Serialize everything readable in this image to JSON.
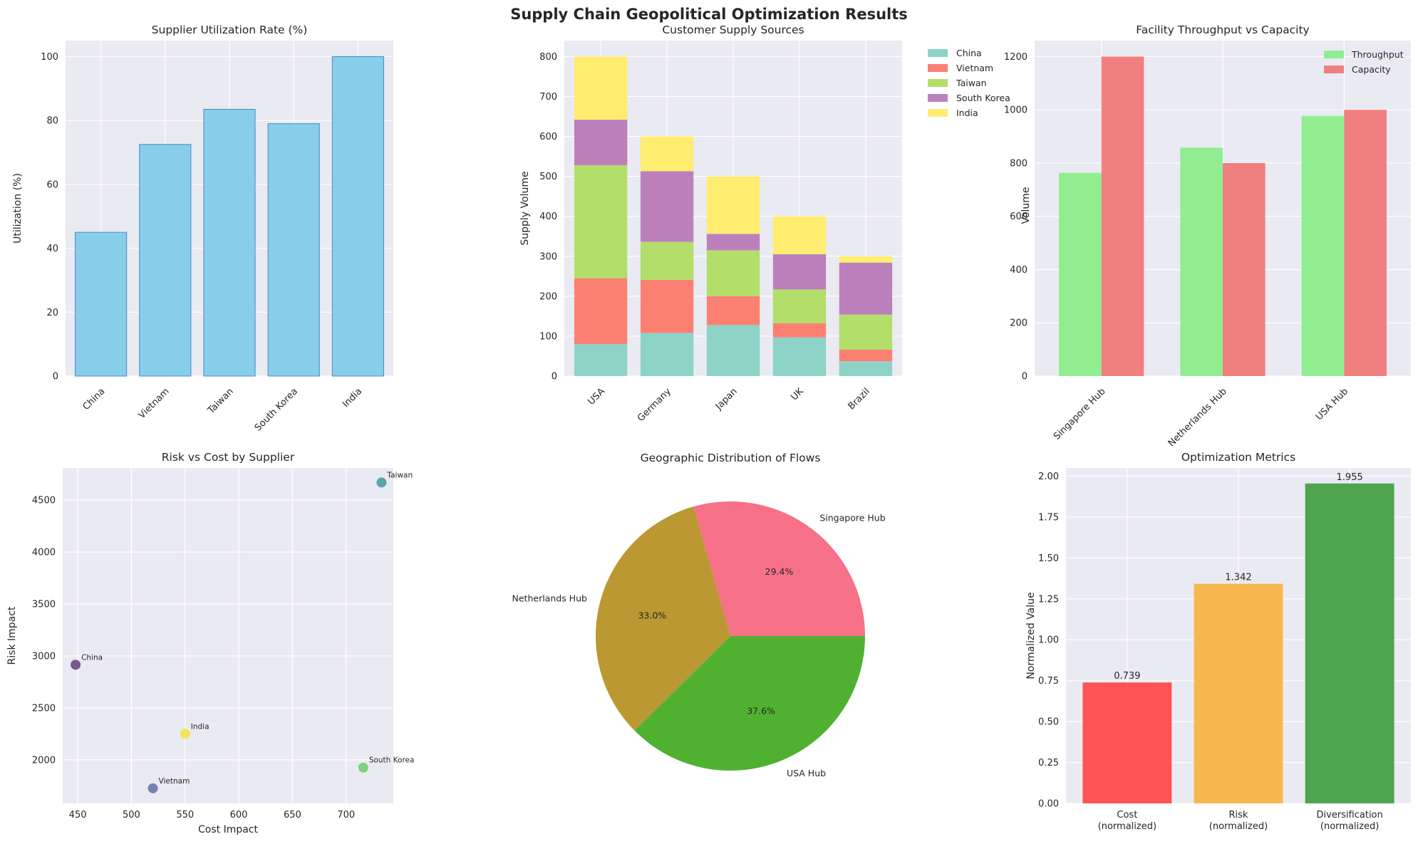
{
  "suptitle": "Supply Chain Geopolitical Optimization Results",
  "chart_data": [
    {
      "id": "utilization",
      "type": "bar",
      "title": "Supplier Utilization Rate (%)",
      "xlabel": "",
      "ylabel": "Utilization (%)",
      "categories": [
        "China",
        "Vietnam",
        "Taiwan",
        "South Korea",
        "India"
      ],
      "values": [
        45,
        72.5,
        83.5,
        79,
        100
      ],
      "ylim": [
        0,
        105
      ],
      "yticks": [
        0,
        20,
        40,
        60,
        80,
        100
      ],
      "color": "#87ceeb",
      "grid": true
    },
    {
      "id": "supply",
      "type": "bar",
      "stacked": true,
      "title": "Customer Supply Sources",
      "xlabel": "",
      "ylabel": "Supply Volume",
      "categories": [
        "USA",
        "Germany",
        "Japan",
        "UK",
        "Brazil"
      ],
      "series": [
        {
          "name": "China",
          "color": "#8dd3c7",
          "values": [
            80,
            108,
            128,
            97,
            37
          ]
        },
        {
          "name": "Vietnam",
          "color": "#fb8072",
          "values": [
            165,
            133,
            72,
            35,
            29
          ]
        },
        {
          "name": "Taiwan",
          "color": "#b3de69",
          "values": [
            283,
            95,
            115,
            85,
            88
          ]
        },
        {
          "name": "South Korea",
          "color": "#bc80bd",
          "values": [
            114,
            177,
            41,
            88,
            130
          ]
        },
        {
          "name": "India",
          "color": "#ffed6f",
          "values": [
            158,
            87,
            144,
            95,
            16
          ]
        }
      ],
      "ylim": [
        0,
        840
      ],
      "yticks": [
        0,
        100,
        200,
        300,
        400,
        500,
        600,
        700,
        800
      ],
      "legend": "outside-right",
      "grid": true
    },
    {
      "id": "facility",
      "type": "bar",
      "grouped": true,
      "title": "Facility Throughput vs Capacity",
      "xlabel": "",
      "ylabel": "Volume",
      "categories": [
        "Singapore Hub",
        "Netherlands Hub",
        "USA Hub"
      ],
      "series": [
        {
          "name": "Throughput",
          "color": "#90ee90",
          "values": [
            763,
            858,
            977
          ]
        },
        {
          "name": "Capacity",
          "color": "#f08080",
          "values": [
            1200,
            800,
            1000
          ]
        }
      ],
      "ylim": [
        0,
        1260
      ],
      "yticks": [
        0,
        200,
        400,
        600,
        800,
        1000,
        1200
      ],
      "legend": "top-right",
      "grid": true
    },
    {
      "id": "risk_cost",
      "type": "scatter",
      "title": "Risk vs Cost by Supplier",
      "xlabel": "Cost Impact",
      "ylabel": "Risk Impact",
      "points": [
        {
          "label": "China",
          "x": 448,
          "y": 2915,
          "color": "#6a3d7e"
        },
        {
          "label": "Vietnam",
          "x": 520,
          "y": 1725,
          "color": "#5e70a8"
        },
        {
          "label": "Taiwan",
          "x": 733,
          "y": 4670,
          "color": "#3a9a9f"
        },
        {
          "label": "South Korea",
          "x": 716,
          "y": 1925,
          "color": "#6ccb6e"
        },
        {
          "label": "India",
          "x": 550,
          "y": 2250,
          "color": "#f4e33a"
        }
      ],
      "xlim": [
        436,
        744
      ],
      "ylim": [
        1580,
        4810
      ],
      "xticks": [
        450,
        500,
        550,
        600,
        650,
        700
      ],
      "yticks": [
        2000,
        2500,
        3000,
        3500,
        4000,
        4500
      ],
      "grid": true
    },
    {
      "id": "geo",
      "type": "pie",
      "title": "Geographic Distribution of Flows",
      "slices": [
        {
          "label": "Singapore Hub",
          "value": 29.4,
          "pct": "29.4%",
          "color": "#f77189"
        },
        {
          "label": "Netherlands Hub",
          "value": 33.0,
          "pct": "33.0%",
          "color": "#bb9832"
        },
        {
          "label": "USA Hub",
          "value": 37.6,
          "pct": "37.6%",
          "color": "#50b131"
        }
      ]
    },
    {
      "id": "metrics",
      "type": "bar",
      "title": "Optimization Metrics",
      "xlabel": "",
      "ylabel": "Normalized Value",
      "categories": [
        [
          "Cost",
          "(normalized)"
        ],
        [
          "Risk",
          "(normalized)"
        ],
        [
          "Diversification",
          "(normalized)"
        ]
      ],
      "values": [
        0.739,
        1.342,
        1.955
      ],
      "value_labels": [
        "0.739",
        "1.342",
        "1.955"
      ],
      "colors": [
        "#ff4b4b",
        "#f7b544",
        "#46a046"
      ],
      "ylim": [
        0,
        2.05
      ],
      "yticks": [
        "0.00",
        "0.25",
        "0.50",
        "0.75",
        "1.00",
        "1.25",
        "1.50",
        "1.75",
        "2.00"
      ],
      "grid": true
    }
  ]
}
